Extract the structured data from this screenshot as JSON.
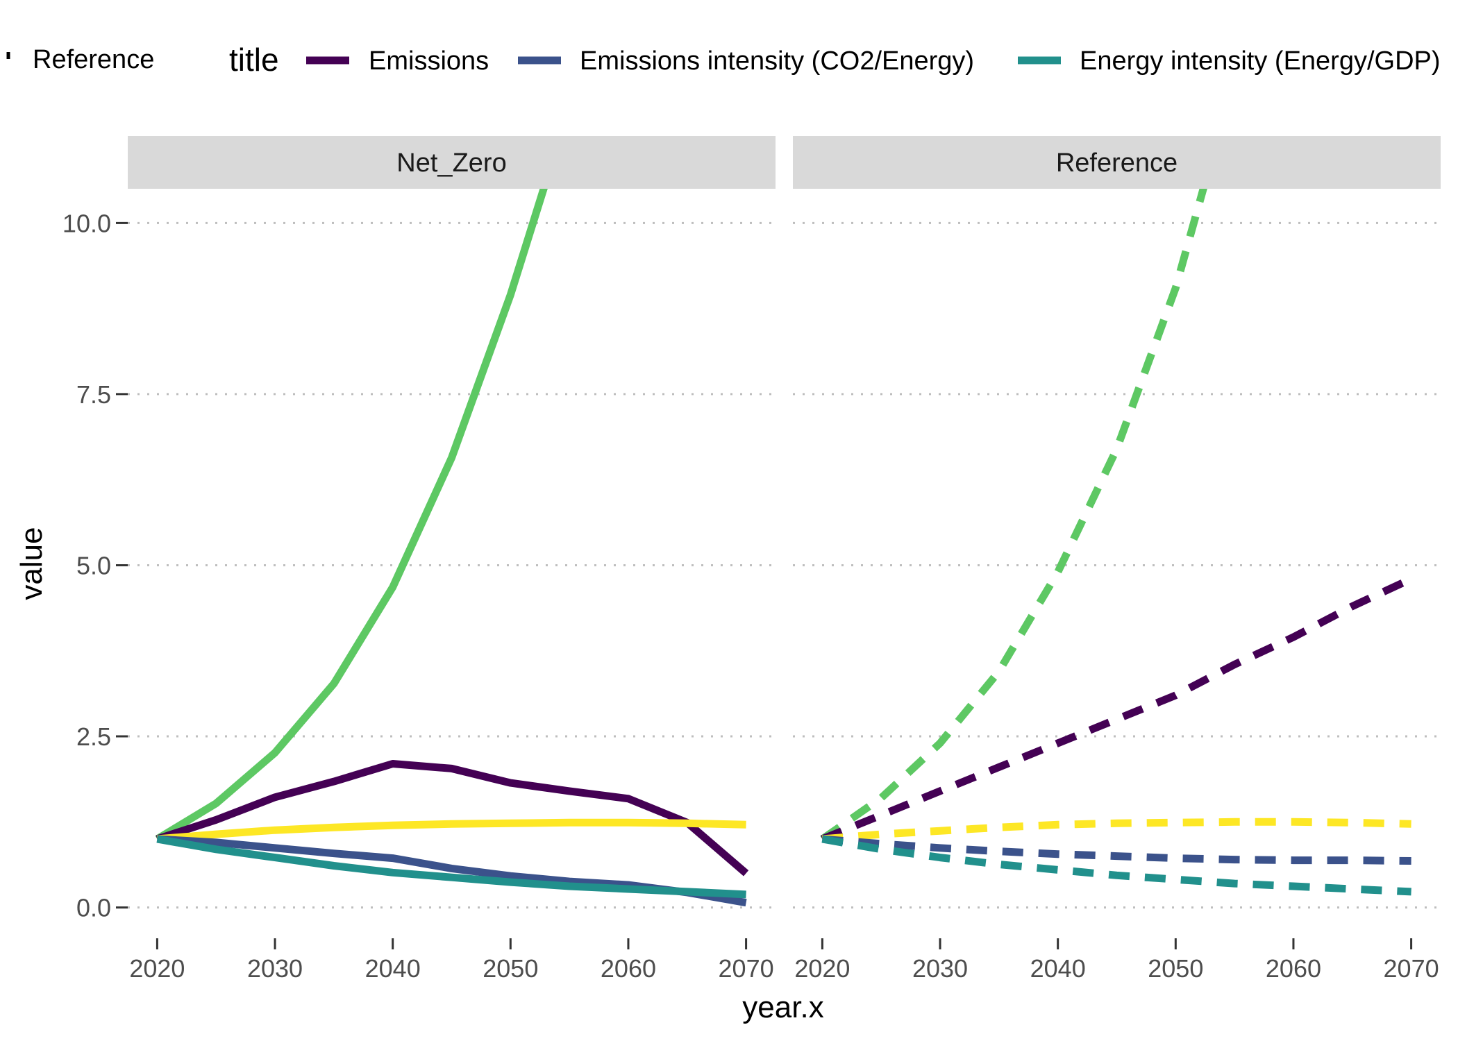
{
  "chart_data": {
    "type": "line",
    "xlabel": "year.x",
    "ylabel": "value",
    "legend": {
      "position": "top",
      "linetype_entries": [
        {
          "label": "Reference",
          "linetype": "dashed"
        }
      ],
      "color_title": "title",
      "color_entries": [
        {
          "label": "Emissions",
          "color": "#440154"
        },
        {
          "label": "Emissions intensity (CO2/Energy)",
          "color": "#3B528B"
        },
        {
          "label": "Energy intensity (Energy/GDP)",
          "color": "#21908C"
        }
      ]
    },
    "x_ticks": [
      "2020",
      "2030",
      "2040",
      "2050",
      "2060",
      "2070"
    ],
    "y_ticks": [
      "0.0",
      "2.5",
      "5.0",
      "7.5",
      "10.0"
    ],
    "xlim": [
      2017.5,
      2072.5
    ],
    "ylim": [
      -0.45,
      10.5
    ],
    "grid": "horizontal dotted major",
    "facets": [
      {
        "label": "Net_Zero",
        "linetype": "solid",
        "series": [
          {
            "color": "#5DC863",
            "x": [
              2020,
              2025,
              2030,
              2035,
              2040,
              2045,
              2050,
              2055
            ],
            "y": [
              1.0,
              1.52,
              2.26,
              3.27,
              4.68,
              6.57,
              8.95,
              11.7
            ]
          },
          {
            "color": "#440154",
            "x": [
              2020,
              2025,
              2030,
              2035,
              2040,
              2045,
              2050,
              2055,
              2060,
              2065,
              2070
            ],
            "y": [
              1.0,
              1.28,
              1.61,
              1.84,
              2.1,
              2.03,
              1.82,
              1.7,
              1.59,
              1.24,
              0.5
            ]
          },
          {
            "color": "#FDE725",
            "x": [
              2020,
              2025,
              2030,
              2035,
              2040,
              2045,
              2050,
              2055,
              2060,
              2065,
              2070
            ],
            "y": [
              1.0,
              1.07,
              1.13,
              1.17,
              1.2,
              1.22,
              1.23,
              1.24,
              1.24,
              1.23,
              1.21
            ]
          },
          {
            "color": "#3B528B",
            "x": [
              2020,
              2025,
              2030,
              2035,
              2040,
              2045,
              2050,
              2055,
              2060,
              2065,
              2070
            ],
            "y": [
              1.0,
              0.95,
              0.87,
              0.79,
              0.72,
              0.57,
              0.46,
              0.38,
              0.33,
              0.22,
              0.07
            ]
          },
          {
            "color": "#21908C",
            "x": [
              2020,
              2025,
              2030,
              2035,
              2040,
              2045,
              2050,
              2055,
              2060,
              2065,
              2070
            ],
            "y": [
              1.0,
              0.85,
              0.73,
              0.61,
              0.51,
              0.44,
              0.37,
              0.31,
              0.27,
              0.23,
              0.19
            ]
          }
        ]
      },
      {
        "label": "Reference",
        "linetype": "dashed",
        "series": [
          {
            "color": "#5DC863",
            "x": [
              2020,
              2025,
              2030,
              2035,
              2040,
              2045,
              2050,
              2053
            ],
            "y": [
              1.0,
              1.6,
              2.4,
              3.45,
              4.9,
              6.7,
              9.05,
              10.9
            ]
          },
          {
            "color": "#440154",
            "x": [
              2020,
              2025,
              2030,
              2035,
              2040,
              2045,
              2050,
              2055,
              2060,
              2065,
              2070
            ],
            "y": [
              1.0,
              1.35,
              1.7,
              2.05,
              2.4,
              2.75,
              3.1,
              3.55,
              3.95,
              4.4,
              4.8
            ]
          },
          {
            "color": "#FDE725",
            "x": [
              2020,
              2025,
              2030,
              2035,
              2040,
              2045,
              2050,
              2055,
              2060,
              2065,
              2070
            ],
            "y": [
              1.0,
              1.07,
              1.12,
              1.17,
              1.21,
              1.23,
              1.24,
              1.25,
              1.25,
              1.24,
              1.22
            ]
          },
          {
            "color": "#3B528B",
            "x": [
              2020,
              2025,
              2030,
              2035,
              2040,
              2045,
              2050,
              2055,
              2060,
              2065,
              2070
            ],
            "y": [
              1.0,
              0.93,
              0.87,
              0.82,
              0.78,
              0.75,
              0.72,
              0.7,
              0.69,
              0.69,
              0.68
            ]
          },
          {
            "color": "#21908C",
            "x": [
              2020,
              2025,
              2030,
              2035,
              2040,
              2045,
              2050,
              2055,
              2060,
              2065,
              2070
            ],
            "y": [
              1.0,
              0.85,
              0.73,
              0.63,
              0.55,
              0.47,
              0.41,
              0.35,
              0.31,
              0.27,
              0.23
            ]
          }
        ]
      }
    ]
  }
}
